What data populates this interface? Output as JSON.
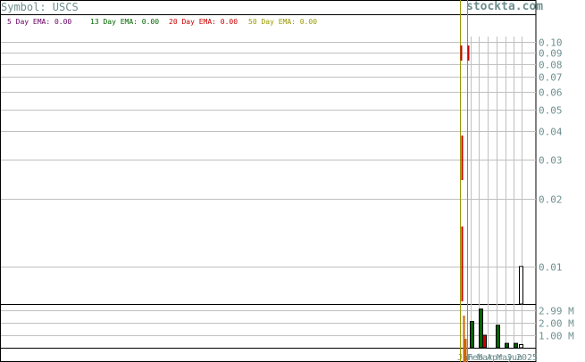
{
  "header": {
    "symbol_text": "Symbol: USCS",
    "watermark": "stockta.com"
  },
  "legend": [
    {
      "label": "5 Day EMA: 0.00",
      "color": "#660066"
    },
    {
      "label": "13 Day EMA: 0.00",
      "color": "#006600"
    },
    {
      "label": "20 Day EMA: 0.00",
      "color": "#cc0000"
    },
    {
      "label": "50 Day EMA: 0.00",
      "color": "#999900"
    }
  ],
  "colors": {
    "frame": "#000000",
    "grid": "#c0c0c0",
    "tick_text": "#6f8f8f",
    "ema_red": "#cc0000",
    "ema_orange": "#cc6600",
    "ema_olive": "#999900",
    "vol_up": "#006600",
    "vol_down": "#cc0000",
    "vol_last": "#ffffff"
  },
  "chart_data": [
    {
      "type": "line",
      "title": "Symbol: USCS",
      "y_scale": "log",
      "ylim": [
        0.0068,
        0.106
      ],
      "y_ticks": [
        {
          "value": 0.1,
          "label": "0.10"
        },
        {
          "value": 0.09,
          "label": "0.09"
        },
        {
          "value": 0.08,
          "label": "0.08"
        },
        {
          "value": 0.07,
          "label": "0.07"
        },
        {
          "value": 0.06,
          "label": "0.06"
        },
        {
          "value": 0.05,
          "label": "0.05"
        },
        {
          "value": 0.04,
          "label": "0.04"
        },
        {
          "value": 0.03,
          "label": "0.03"
        },
        {
          "value": 0.02,
          "label": "0.02"
        },
        {
          "value": 0.01,
          "label": "0.01"
        }
      ],
      "x_ticks": [
        "Jan",
        "Feb",
        "Mar",
        "Apr",
        "May",
        "Jun",
        "2025"
      ],
      "series": [
        {
          "name": "5 Day EMA",
          "value": 0.0
        },
        {
          "name": "13 Day EMA",
          "value": 0.0
        },
        {
          "name": "20 Day EMA",
          "value": 0.0
        },
        {
          "name": "50 Day EMA",
          "value": 0.0
        }
      ],
      "last_bar": {
        "high": 0.01,
        "low": 0.0068
      }
    },
    {
      "type": "bar",
      "y_ticks": [
        {
          "value": 2.99,
          "label": "2.99 M"
        },
        {
          "value": 2.0,
          "label": "2.00 M"
        },
        {
          "value": 1.0,
          "label": "1.00 M"
        }
      ],
      "ylim": [
        0,
        3.5
      ],
      "bars": [
        {
          "color": "up",
          "value": 2.1
        },
        {
          "color": "up",
          "value": 3.1
        },
        {
          "color": "down",
          "value": 1.0
        },
        {
          "color": "up",
          "value": 1.8
        },
        {
          "color": "up",
          "value": 0.35
        },
        {
          "color": "up",
          "value": 0.35
        },
        {
          "color": "last",
          "value": 0.25
        }
      ]
    }
  ]
}
